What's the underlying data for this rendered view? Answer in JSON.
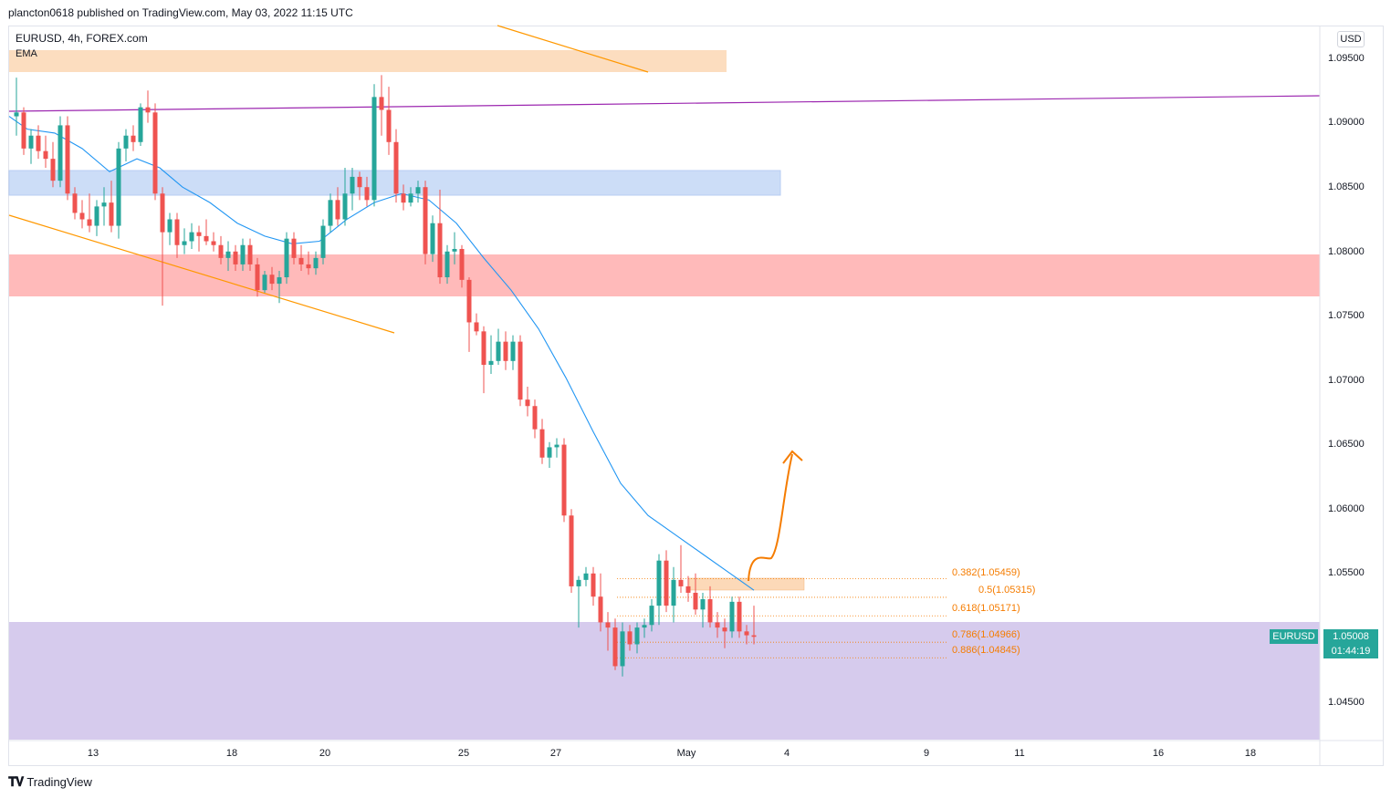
{
  "header": {
    "published": "plancton0618 published on TradingView.com, May 03, 2022 11:15 UTC"
  },
  "chart": {
    "symbol_line": "EURUSD, 4h, FOREX.com",
    "indicator": "EMA",
    "currency": "USD",
    "y_ticks": [
      "1.09500",
      "1.09000",
      "1.08500",
      "1.08000",
      "1.07500",
      "1.07000",
      "1.06500",
      "1.06000",
      "1.05500",
      "1.04500"
    ],
    "x_ticks": [
      "13",
      "18",
      "20",
      "25",
      "27",
      "May",
      "4",
      "9",
      "11",
      "16",
      "18"
    ],
    "fib_levels": [
      {
        "label": "0.382(1.05459)",
        "value": 1.05459
      },
      {
        "label": "0.5(1.05315)",
        "value": 1.05315
      },
      {
        "label": "0.618(1.05171)",
        "value": 1.05171
      },
      {
        "label": "0.786(1.04966)",
        "value": 1.04966
      },
      {
        "label": "0.886(1.04845)",
        "value": 1.04845
      }
    ],
    "last_price": {
      "symbol": "EURUSD",
      "price": "1.05008",
      "countdown": "01:44:19"
    },
    "colors": {
      "up": "#26a69a",
      "down": "#ef5350",
      "ema": "#2196f3",
      "trend": "#ff9800",
      "resistance": "#9c27b0",
      "blue_zone": "#bbd2f5",
      "red_zone": "#ffb3b3",
      "purple_zone": "#d4c8ec",
      "orange_zone": "#fcd9b8"
    }
  },
  "footer": {
    "brand": "TradingView"
  }
}
